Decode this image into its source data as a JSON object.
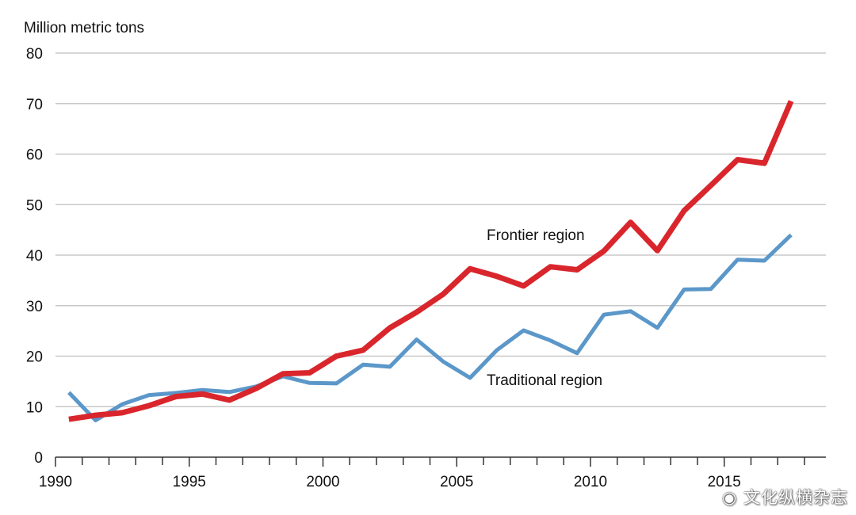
{
  "chart_data": {
    "type": "line",
    "title": "",
    "ylabel": "Million metric tons",
    "xlabel": "",
    "ylim": [
      0,
      80
    ],
    "xlim": [
      1990,
      2018.8
    ],
    "grid": true,
    "y_ticks": [
      0,
      10,
      20,
      30,
      40,
      50,
      60,
      70,
      80
    ],
    "x_tick_labels": [
      1990,
      1995,
      2000,
      2005,
      2010,
      2015
    ],
    "x": [
      1990.5,
      1991.5,
      1992.5,
      1993.5,
      1994.5,
      1995.5,
      1996.5,
      1997.5,
      1998.5,
      1999.5,
      2000.5,
      2001.5,
      2002.5,
      2003.5,
      2004.5,
      2005.5,
      2006.5,
      2007.5,
      2008.5,
      2009.5,
      2010.5,
      2011.5,
      2012.5,
      2013.5,
      2014.5,
      2015.5,
      2016.5,
      2017.5
    ],
    "series": [
      {
        "name": "Frontier region",
        "color": "#d9262c",
        "values": [
          7.5,
          8.3,
          8.8,
          10.2,
          12.0,
          12.5,
          11.3,
          13.6,
          16.5,
          16.7,
          20.0,
          21.2,
          25.6,
          28.7,
          32.3,
          37.3,
          35.8,
          33.9,
          37.7,
          37.1,
          40.8,
          46.5,
          40.9,
          48.8,
          53.8,
          58.9,
          58.2,
          70.5
        ]
      },
      {
        "name": "Traditional region",
        "color": "#5b97c9",
        "values": [
          12.8,
          7.3,
          10.5,
          12.3,
          12.7,
          13.3,
          12.9,
          14.0,
          16.0,
          14.7,
          14.6,
          18.3,
          17.9,
          23.3,
          18.9,
          15.7,
          21.2,
          25.1,
          23.1,
          20.6,
          28.2,
          28.9,
          25.6,
          33.2,
          33.3,
          39.1,
          38.9,
          44.0
        ]
      }
    ],
    "annotations": [
      {
        "text": "Frontier region",
        "series": 0
      },
      {
        "text": "Traditional region",
        "series": 1
      }
    ]
  },
  "watermark": {
    "text": "文化纵横杂志",
    "icon": "weibo-icon"
  }
}
